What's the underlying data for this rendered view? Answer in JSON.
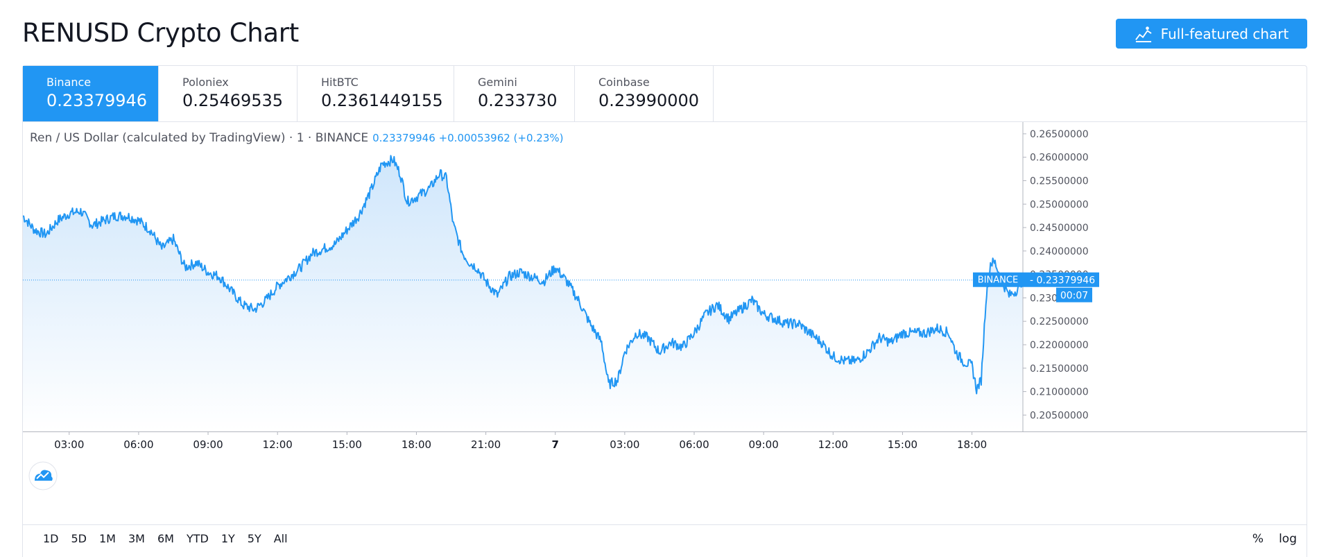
{
  "header": {
    "title": "RENUSD Crypto Chart",
    "full_chart_label": "Full-featured chart"
  },
  "exchanges": [
    {
      "name": "Binance",
      "price": "0.23379946",
      "active": true
    },
    {
      "name": "Poloniex",
      "price": "0.25469535",
      "active": false
    },
    {
      "name": "HitBTC",
      "price": "0.2361449155",
      "active": false
    },
    {
      "name": "Gemini",
      "price": "0.233730",
      "active": false
    },
    {
      "name": "Coinbase",
      "price": "0.23990000",
      "active": false
    }
  ],
  "legend": {
    "symbol_text": "Ren / US Dollar (calculated by TradingView) · 1 · BINANCE",
    "last": "0.23379946",
    "change": "+0.00053962 (+0.23%)"
  },
  "price_label": {
    "exchange": "BINANCE",
    "value": "0.23379946",
    "countdown": "00:07"
  },
  "ranges": [
    "1D",
    "5D",
    "1M",
    "3M",
    "6M",
    "YTD",
    "1Y",
    "5Y",
    "All"
  ],
  "scale_options": {
    "percent": "%",
    "log": "log"
  },
  "colors": {
    "accent": "#2196f3",
    "line": "#2196f3",
    "fill_top": "#cfe6fb",
    "fill_bottom": "#ffffff",
    "grid": "#e0e3eb"
  },
  "chart_data": {
    "type": "area",
    "title": "Ren / US Dollar (calculated by TradingView) · 1 · BINANCE",
    "xlabel": "",
    "ylabel": "",
    "ylim": [
      0.2015,
      0.2675
    ],
    "ticks": [
      "0.26500000",
      "0.26000000",
      "0.25500000",
      "0.25000000",
      "0.24500000",
      "0.24000000",
      "0.23500000",
      "0.23000000",
      "0.22500000",
      "0.22000000",
      "0.21500000",
      "0.21000000",
      "0.20500000"
    ],
    "tick_values": [
      0.265,
      0.26,
      0.255,
      0.25,
      0.245,
      0.24,
      0.235,
      0.23,
      0.225,
      0.22,
      0.215,
      0.21,
      0.205
    ],
    "xaxis_labels": [
      "03:00",
      "06:00",
      "09:00",
      "12:00",
      "15:00",
      "18:00",
      "21:00",
      "7",
      "03:00",
      "06:00",
      "09:00",
      "12:00",
      "15:00",
      "18:00"
    ],
    "xaxis_hours": [
      3,
      6,
      9,
      12,
      15,
      18,
      21,
      24,
      27,
      30,
      33,
      36,
      39,
      42
    ],
    "xlim_hours": [
      1,
      44.2
    ],
    "last_value": 0.23379946,
    "series": [
      {
        "x": [
          1.0,
          1.5,
          2.0,
          2.5,
          3.0,
          3.5,
          4.0,
          4.5,
          5.0,
          5.5,
          6.0,
          6.5,
          7.0,
          7.5,
          8.0,
          8.5,
          9.0,
          9.5,
          10.0,
          10.5,
          11.0,
          11.5,
          12.0,
          12.5,
          13.0,
          13.5,
          14.0,
          14.5,
          15.0,
          15.5,
          16.0,
          16.5,
          17.0,
          17.3,
          17.6,
          18.0,
          18.3,
          18.6,
          19.0,
          19.3,
          19.6,
          20.0,
          20.3,
          20.6,
          21.0,
          21.5,
          22.0,
          22.5,
          23.0,
          23.5,
          24.0,
          24.5,
          25.0,
          25.5,
          26.0,
          26.3,
          26.7,
          27.0,
          27.5,
          28.0,
          28.5,
          29.0,
          29.5,
          30.0,
          30.5,
          31.0,
          31.5,
          32.0,
          32.5,
          33.0,
          33.5,
          34.0,
          34.5,
          35.0,
          35.5,
          36.0,
          36.5,
          37.0,
          37.5,
          38.0,
          38.5,
          39.0,
          39.5,
          40.0,
          40.5,
          41.0,
          41.3,
          41.6,
          42.0,
          42.2,
          42.4,
          42.6,
          42.8,
          43.0,
          43.3,
          43.6,
          43.9,
          44.2
        ],
        "y": [
          0.2475,
          0.2445,
          0.2435,
          0.2465,
          0.248,
          0.2485,
          0.2455,
          0.2465,
          0.2475,
          0.2475,
          0.2465,
          0.2445,
          0.2405,
          0.2425,
          0.2365,
          0.2375,
          0.2355,
          0.2345,
          0.2315,
          0.2285,
          0.2275,
          0.2295,
          0.2325,
          0.2345,
          0.2365,
          0.2395,
          0.2405,
          0.2415,
          0.2445,
          0.2475,
          0.2525,
          0.2585,
          0.2595,
          0.2565,
          0.2505,
          0.2515,
          0.2525,
          0.2535,
          0.2565,
          0.2555,
          0.2455,
          0.2395,
          0.2375,
          0.2365,
          0.2335,
          0.2305,
          0.2345,
          0.2355,
          0.2345,
          0.2335,
          0.2365,
          0.2335,
          0.2295,
          0.2245,
          0.2205,
          0.2115,
          0.2125,
          0.2185,
          0.2225,
          0.2215,
          0.2185,
          0.2205,
          0.2195,
          0.2225,
          0.2265,
          0.2285,
          0.2255,
          0.2275,
          0.2295,
          0.2265,
          0.2255,
          0.2245,
          0.2245,
          0.2225,
          0.2205,
          0.2175,
          0.2165,
          0.2165,
          0.2185,
          0.2215,
          0.2205,
          0.2225,
          0.2225,
          0.2225,
          0.2235,
          0.2225,
          0.2185,
          0.2165,
          0.2155,
          0.2105,
          0.2125,
          0.2295,
          0.2375,
          0.2375,
          0.2335,
          0.2305,
          0.2315,
          0.2338
        ]
      }
    ]
  }
}
